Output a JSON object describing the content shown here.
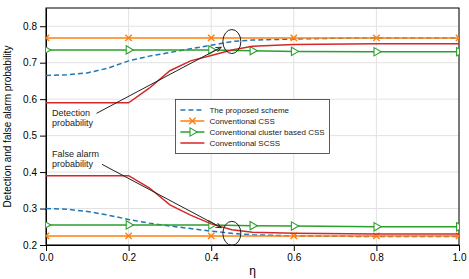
{
  "chart_data": {
    "type": "line",
    "xlabel": "η",
    "ylabel": "Detection and false alarm probability",
    "xlim": [
      0,
      1
    ],
    "ylim": [
      0.2,
      0.85
    ],
    "xticks": [
      {
        "value": 0,
        "label": "0.0"
      },
      0.2,
      0.4,
      0.6,
      0.8,
      {
        "value": 1.0,
        "label": "1.0"
      }
    ],
    "yticks": [
      0.2,
      0.3,
      0.4,
      0.5,
      0.6,
      0.7,
      0.8
    ],
    "grid": true,
    "legend": "center",
    "series": [
      {
        "name": "The proposed scheme",
        "line_style": "dashed",
        "marker": "none",
        "x": [
          0.0,
          0.05,
          0.1,
          0.15,
          0.2,
          0.25,
          0.3,
          0.35,
          0.4,
          0.45,
          0.5,
          0.6,
          0.7,
          0.8,
          0.9,
          1.0
        ],
        "values": [
          0.665,
          0.667,
          0.672,
          0.685,
          0.705,
          0.718,
          0.728,
          0.738,
          0.748,
          0.758,
          0.762,
          0.765,
          0.767,
          0.768,
          0.768,
          0.768
        ]
      },
      {
        "name": "Conventional CSS",
        "line_style": "solid",
        "marker": "x",
        "x": [
          0.0,
          0.2,
          0.4,
          0.6,
          0.8,
          1.0
        ],
        "values": [
          0.768,
          0.768,
          0.768,
          0.768,
          0.768,
          0.768
        ]
      },
      {
        "name": "Conventional cluster based CSS",
        "line_style": "solid",
        "marker": "triangle-right",
        "x": [
          0.0,
          0.2,
          0.4,
          0.5,
          0.6,
          0.8,
          1.0
        ],
        "values": [
          0.735,
          0.735,
          0.735,
          0.733,
          0.731,
          0.73,
          0.73
        ]
      },
      {
        "name": "Conventional SCSS",
        "line_style": "solid",
        "marker": "none",
        "x": [
          0.0,
          0.1,
          0.2,
          0.25,
          0.3,
          0.35,
          0.4,
          0.45,
          0.5,
          0.6,
          0.8,
          1.0
        ],
        "values": [
          0.59,
          0.59,
          0.59,
          0.63,
          0.678,
          0.705,
          0.72,
          0.735,
          0.745,
          0.75,
          0.752,
          0.752
        ]
      },
      {
        "name": "The proposed scheme",
        "line_style": "dashed",
        "marker": "none",
        "x": [
          0.0,
          0.05,
          0.1,
          0.15,
          0.2,
          0.25,
          0.3,
          0.35,
          0.4,
          0.45,
          0.5,
          0.6,
          0.7,
          0.8,
          0.9,
          1.0
        ],
        "values": [
          0.3,
          0.298,
          0.292,
          0.282,
          0.27,
          0.26,
          0.252,
          0.245,
          0.238,
          0.232,
          0.228,
          0.225,
          0.224,
          0.223,
          0.223,
          0.223
        ]
      },
      {
        "name": "Conventional CSS",
        "line_style": "solid",
        "marker": "x",
        "x": [
          0.0,
          0.2,
          0.4,
          0.6,
          0.8,
          1.0
        ],
        "values": [
          0.225,
          0.225,
          0.225,
          0.225,
          0.225,
          0.225
        ]
      },
      {
        "name": "Conventional cluster based CSS",
        "line_style": "solid",
        "marker": "triangle-right",
        "x": [
          0.0,
          0.2,
          0.4,
          0.5,
          0.6,
          0.8,
          1.0
        ],
        "values": [
          0.255,
          0.255,
          0.255,
          0.253,
          0.252,
          0.25,
          0.25
        ]
      },
      {
        "name": "Conventional SCSS",
        "line_style": "solid",
        "marker": "none",
        "x": [
          0.0,
          0.1,
          0.2,
          0.25,
          0.3,
          0.35,
          0.4,
          0.45,
          0.5,
          0.6,
          0.8,
          1.0
        ],
        "values": [
          0.39,
          0.39,
          0.39,
          0.357,
          0.31,
          0.282,
          0.258,
          0.242,
          0.235,
          0.232,
          0.23,
          0.23
        ]
      }
    ],
    "annotations": [
      {
        "text": "Detection\nprobability"
      },
      {
        "text": "False alarm\nprobability"
      }
    ]
  }
}
